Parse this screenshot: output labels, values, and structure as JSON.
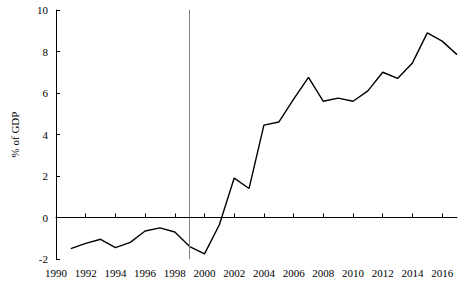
{
  "chart_data": {
    "type": "line",
    "y_label": "% of GDP",
    "x": [
      1991,
      1992,
      1993,
      1994,
      1995,
      1996,
      1997,
      1998,
      1999,
      2000,
      2001,
      2002,
      2003,
      2004,
      2005,
      2006,
      2007,
      2008,
      2009,
      2010,
      2011,
      2012,
      2013,
      2014,
      2015,
      2016,
      2017
    ],
    "values": [
      -1.5,
      -1.25,
      -1.05,
      -1.45,
      -1.2,
      -0.65,
      -0.5,
      -0.7,
      -1.4,
      -1.75,
      -0.35,
      1.9,
      1.4,
      4.45,
      4.6,
      5.7,
      6.75,
      5.6,
      5.75,
      5.6,
      6.1,
      7.0,
      6.7,
      7.45,
      8.9,
      8.5,
      7.85
    ],
    "color": "#000000",
    "line_style": "solid",
    "xlim": [
      1990,
      2017
    ],
    "xticks": [
      1990,
      1992,
      1994,
      1996,
      1998,
      2000,
      2002,
      2004,
      2006,
      2008,
      2010,
      2012,
      2014,
      2016
    ],
    "ylim": [
      -2,
      10
    ],
    "yticks": [
      -2,
      0,
      2,
      4,
      6,
      8,
      10
    ],
    "reference_lines": [
      {
        "axis": "x",
        "value": 1999,
        "line_style": "solid",
        "color": "#808080"
      },
      {
        "axis": "y",
        "value": 0,
        "line_style": "dashed",
        "color": "#000000"
      }
    ],
    "grid": false
  }
}
